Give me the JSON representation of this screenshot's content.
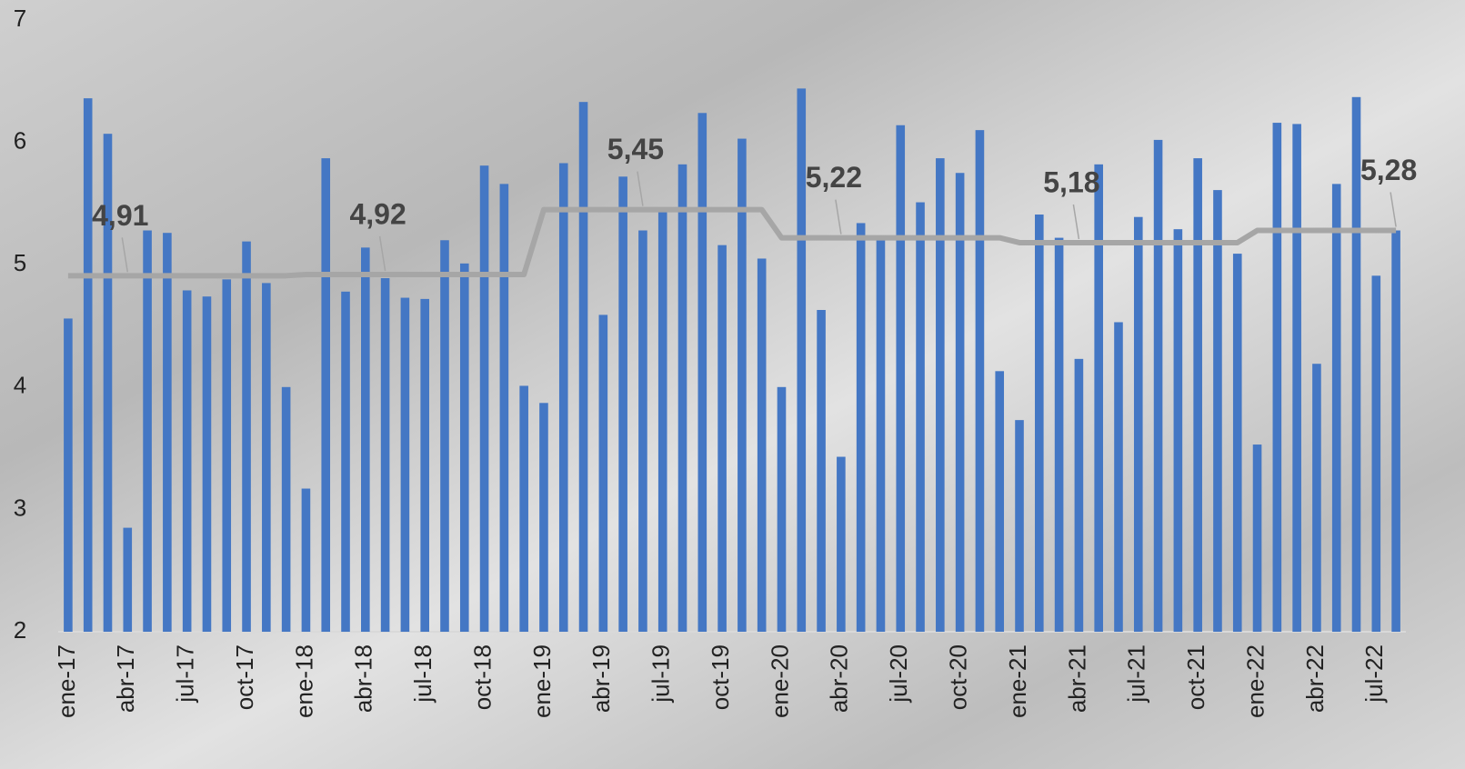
{
  "chart_data": {
    "type": "bar",
    "categories": [
      "ene-17",
      null,
      null,
      "abr-17",
      null,
      null,
      "jul-17",
      null,
      null,
      "oct-17",
      null,
      null,
      "ene-18",
      null,
      null,
      "abr-18",
      null,
      null,
      "jul-18",
      null,
      null,
      "oct-18",
      null,
      null,
      "ene-19",
      null,
      null,
      "abr-19",
      null,
      null,
      "jul-19",
      null,
      null,
      "oct-19",
      null,
      null,
      "ene-20",
      null,
      null,
      "abr-20",
      null,
      null,
      "jul-20",
      null,
      null,
      "oct-20",
      null,
      null,
      "ene-21",
      null,
      null,
      "abr-21",
      null,
      null,
      "jul-21",
      null,
      null,
      "oct-21",
      null,
      null,
      "ene-22",
      null,
      null,
      "abr-22",
      null,
      null,
      "jul-22",
      null
    ],
    "series": [
      {
        "type": "bar",
        "color": "#4477c4",
        "values": [
          4.56,
          6.36,
          6.07,
          2.85,
          5.28,
          5.26,
          4.79,
          4.74,
          4.88,
          5.19,
          4.85,
          4.0,
          3.17,
          5.87,
          4.78,
          5.14,
          4.89,
          4.73,
          4.72,
          5.2,
          5.01,
          5.81,
          5.66,
          4.01,
          3.87,
          5.83,
          6.33,
          4.59,
          5.72,
          5.28,
          5.45,
          5.82,
          6.24,
          5.16,
          6.03,
          5.05,
          4.0,
          6.44,
          4.63,
          3.43,
          5.34,
          5.22,
          6.14,
          5.51,
          5.87,
          5.75,
          6.1,
          4.13,
          3.73,
          5.41,
          5.22,
          4.23,
          5.82,
          4.53,
          5.39,
          6.02,
          5.29,
          5.87,
          5.61,
          5.09,
          3.53,
          6.16,
          6.15,
          4.19,
          5.66,
          6.37,
          4.91,
          5.28
        ]
      },
      {
        "type": "line",
        "color": "#a6a6a6",
        "values": [
          4.91,
          4.91,
          4.91,
          4.91,
          4.91,
          4.91,
          4.91,
          4.91,
          4.91,
          4.91,
          4.91,
          4.91,
          4.92,
          4.92,
          4.92,
          4.92,
          4.92,
          4.92,
          4.92,
          4.92,
          4.92,
          4.92,
          4.92,
          4.92,
          5.45,
          5.45,
          5.45,
          5.45,
          5.45,
          5.45,
          5.45,
          5.45,
          5.45,
          5.45,
          5.45,
          5.45,
          5.22,
          5.22,
          5.22,
          5.22,
          5.22,
          5.22,
          5.22,
          5.22,
          5.22,
          5.22,
          5.22,
          5.22,
          5.18,
          5.18,
          5.18,
          5.18,
          5.18,
          5.18,
          5.18,
          5.18,
          5.18,
          5.18,
          5.18,
          5.18,
          5.28,
          5.28,
          5.28,
          5.28,
          5.28,
          5.28,
          5.28,
          5.28
        ],
        "value_labels": [
          null,
          null,
          null,
          "4,91",
          null,
          null,
          null,
          null,
          null,
          null,
          null,
          null,
          null,
          null,
          null,
          null,
          "4,92",
          null,
          null,
          null,
          null,
          null,
          null,
          null,
          null,
          null,
          null,
          null,
          null,
          "5,45",
          null,
          null,
          null,
          null,
          null,
          null,
          null,
          null,
          null,
          "5,22",
          null,
          null,
          null,
          null,
          null,
          null,
          null,
          null,
          null,
          null,
          null,
          "5,18",
          null,
          null,
          null,
          null,
          null,
          null,
          null,
          null,
          null,
          null,
          null,
          null,
          null,
          null,
          null,
          "5,28"
        ]
      }
    ],
    "ylim": [
      2,
      7
    ],
    "yticks": [
      2,
      3,
      4,
      5,
      6,
      7
    ],
    "grid": false
  }
}
